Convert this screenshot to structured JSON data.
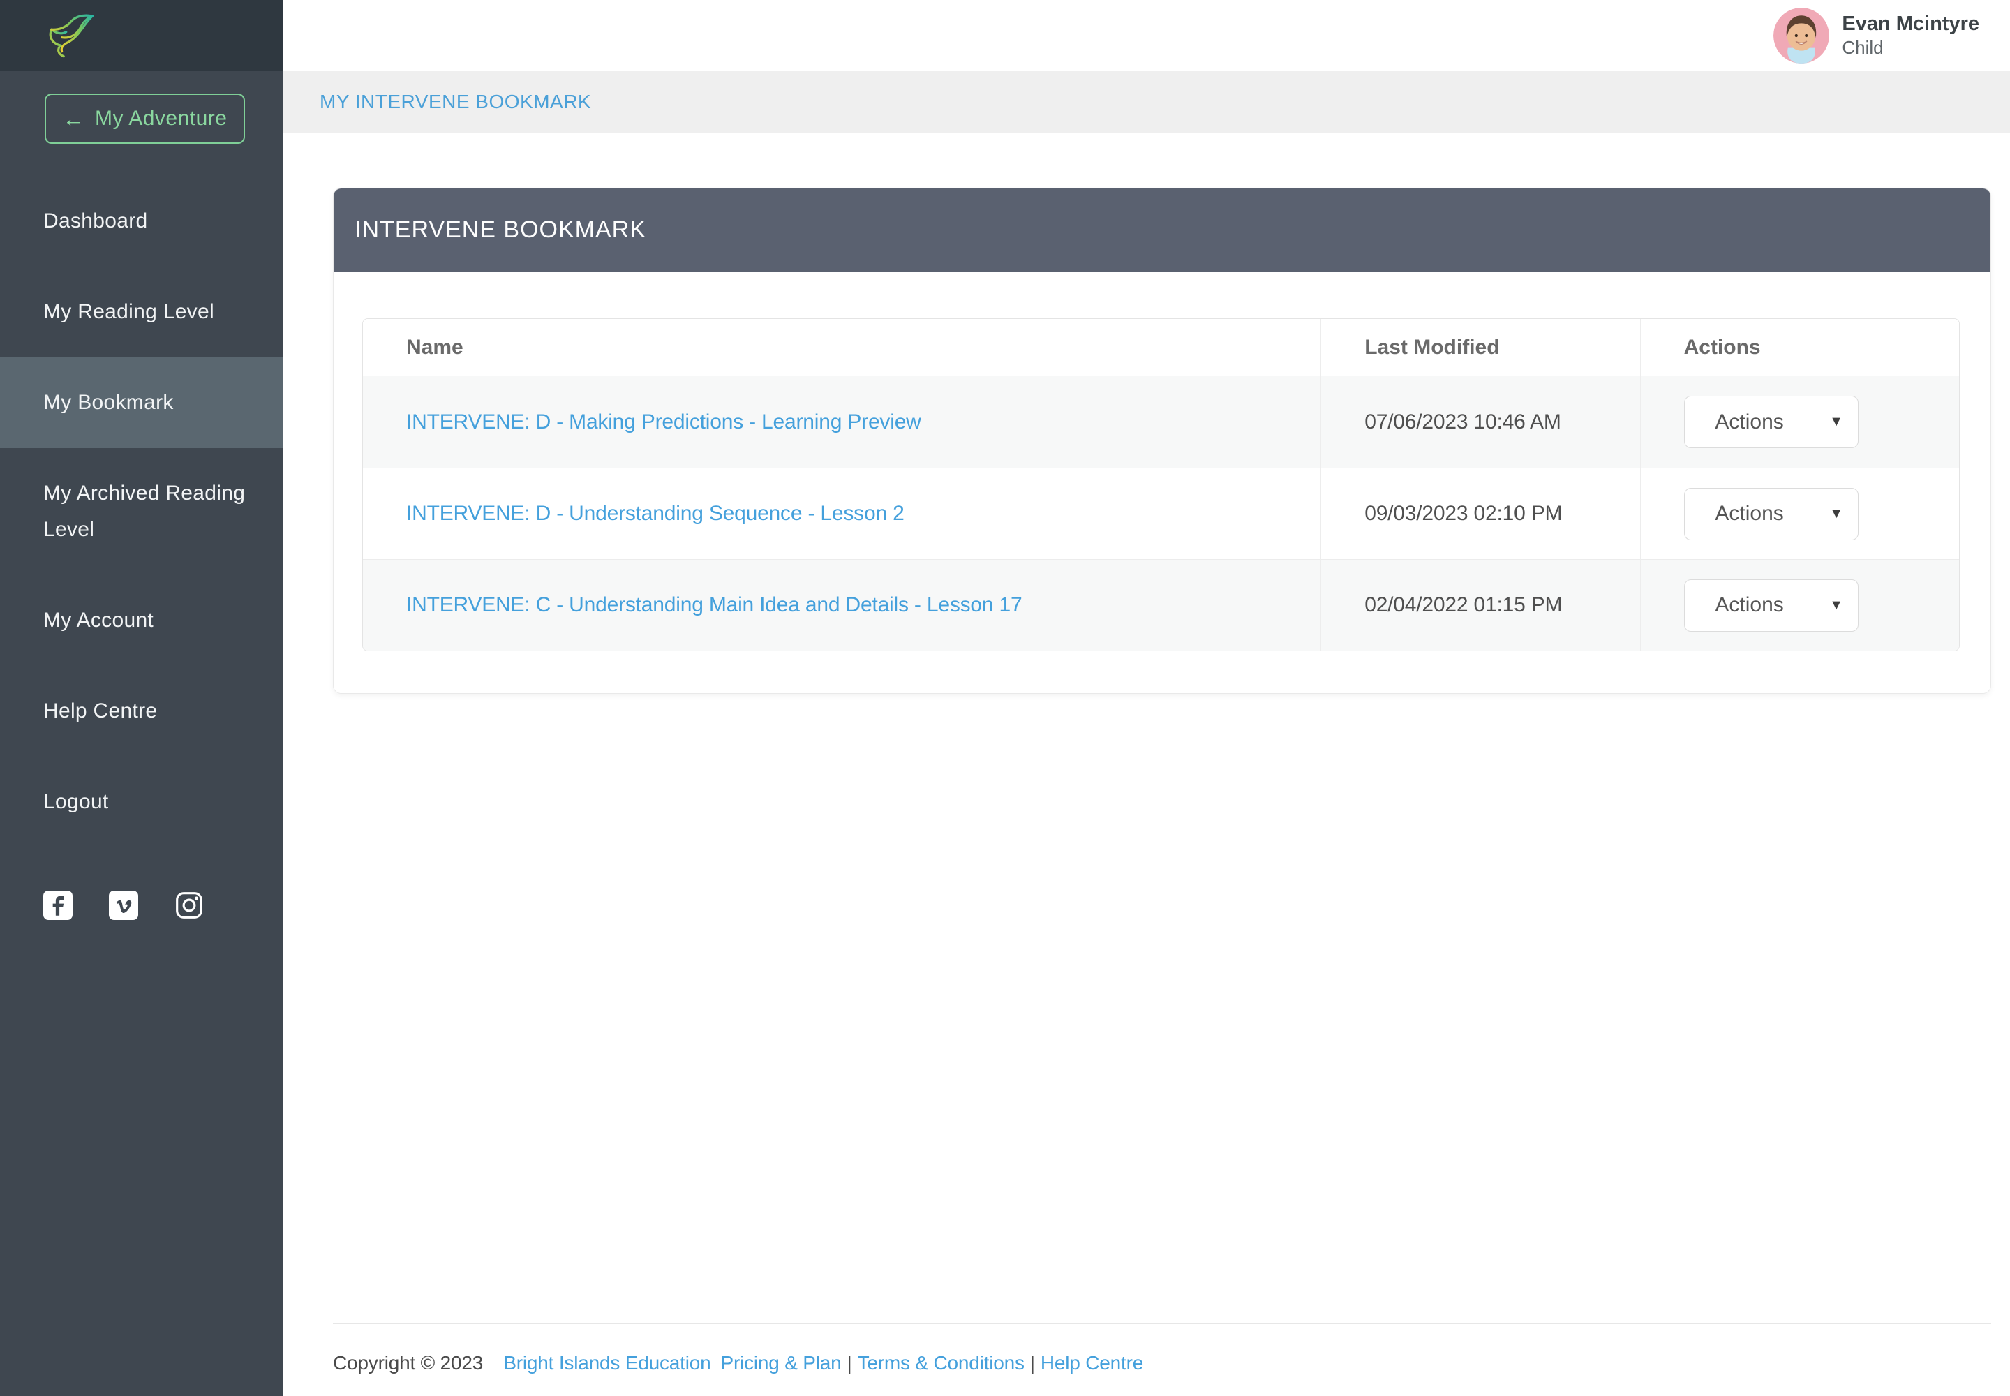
{
  "sidebar": {
    "back_button_label": "My Adventure",
    "items": [
      {
        "label": "Dashboard",
        "active": false
      },
      {
        "label": "My Reading Level",
        "active": false
      },
      {
        "label": "My Bookmark",
        "active": true
      },
      {
        "label": "My Archived Reading Level",
        "active": false
      },
      {
        "label": "My Account",
        "active": false
      },
      {
        "label": "Help Centre",
        "active": false
      },
      {
        "label": "Logout",
        "active": false
      }
    ],
    "social_icons": [
      "facebook-icon",
      "vimeo-icon",
      "instagram-icon"
    ]
  },
  "header": {
    "user_name": "Evan Mcintyre",
    "user_role": "Child"
  },
  "breadcrumb": "MY INTERVENE BOOKMARK",
  "card": {
    "title": "INTERVENE BOOKMARK",
    "table": {
      "columns": [
        "Name",
        "Last Modified",
        "Actions"
      ],
      "rows": [
        {
          "name": "INTERVENE: D - Making Predictions - Learning Preview",
          "last_modified": "07/06/2023 10:46 AM",
          "action_label": "Actions"
        },
        {
          "name": "INTERVENE: D - Understanding Sequence - Lesson 2",
          "last_modified": "09/03/2023 02:10 PM",
          "action_label": "Actions"
        },
        {
          "name": "INTERVENE: C - Understanding Main Idea and Details - Lesson 17",
          "last_modified": "02/04/2022 01:15 PM",
          "action_label": "Actions"
        }
      ]
    }
  },
  "footer": {
    "copyright": "Copyright © 2023",
    "links": [
      "Bright Islands Education",
      "Pricing & Plan",
      "Terms & Conditions",
      "Help Centre"
    ],
    "separator": "|"
  },
  "icons": {
    "back_arrow": "←",
    "caret_down": "▼"
  },
  "colors": {
    "sidebar_bg": "#3f4750",
    "sidebar_top_bg": "#2f3840",
    "active_item_bg": "#5a6770",
    "accent_green": "#8ad79f",
    "card_header_bg": "#5a6170",
    "breadcrumb_bg": "#efefef",
    "link_blue": "#44a0dc",
    "row_stripe_bg": "#f7f8f8"
  }
}
